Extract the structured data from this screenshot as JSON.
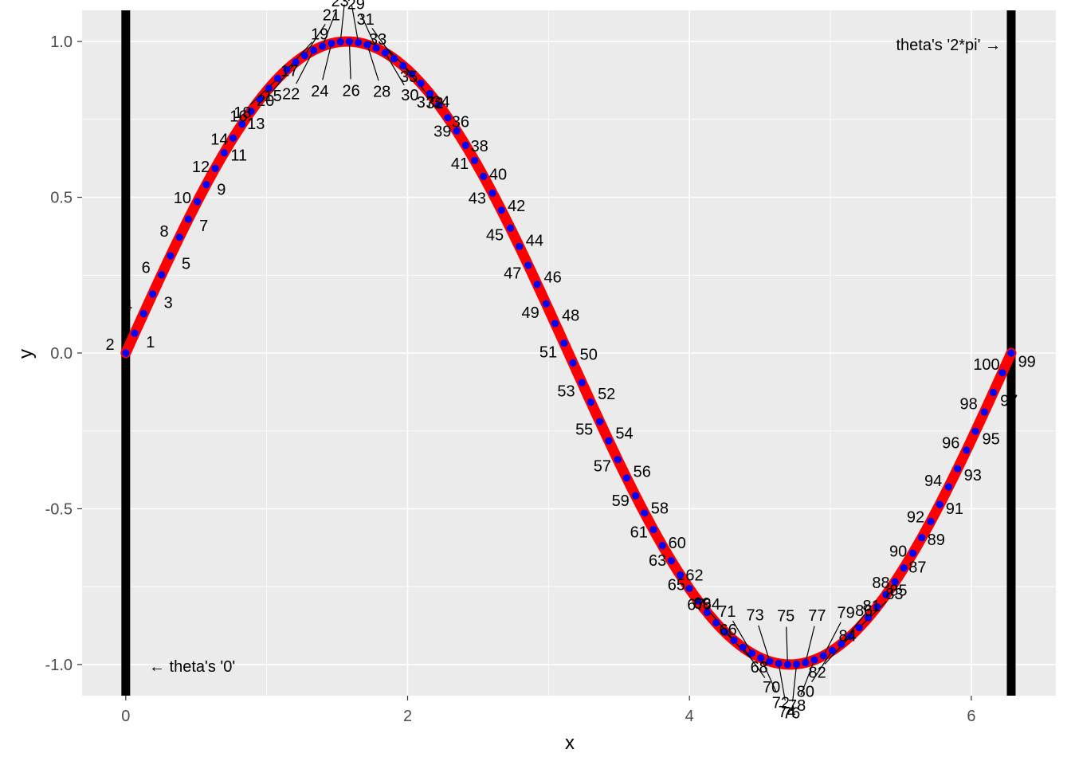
{
  "chart_data": {
    "type": "scatter",
    "title": "",
    "xlabel": "x",
    "ylabel": "y",
    "xlim": [
      -0.31,
      6.6
    ],
    "ylim": [
      -1.1,
      1.1
    ],
    "x_ticks": [
      0,
      2,
      4,
      6
    ],
    "x_tick_labels": [
      "0",
      "2",
      "4",
      "6"
    ],
    "y_ticks": [
      -1.0,
      -0.5,
      0.0,
      0.5,
      1.0
    ],
    "y_tick_labels": [
      "-1.0",
      "-0.5",
      "0.0",
      "0.5",
      "1.0"
    ],
    "grid": true,
    "curve": {
      "function": "sin",
      "x_start": 0,
      "x_end": 6.2832,
      "color": "#ff0000"
    },
    "points": {
      "count": 100,
      "x_start": 0,
      "x_end": 6.2832,
      "function": "sin",
      "color": "#0000ff"
    },
    "point_labels": [
      "1",
      "2",
      "3",
      "4",
      "5",
      "6",
      "7",
      "8",
      "9",
      "10",
      "11",
      "12",
      "13",
      "14",
      "15",
      "16",
      "17",
      "18",
      "19",
      "20",
      "21",
      "22",
      "23",
      "24",
      "25",
      "26",
      "27",
      "28",
      "29",
      "30",
      "31",
      "32",
      "33",
      "34",
      "35",
      "36",
      "37",
      "38",
      "39",
      "40",
      "41",
      "42",
      "43",
      "44",
      "45",
      "46",
      "47",
      "48",
      "49",
      "50",
      "51",
      "52",
      "53",
      "54",
      "55",
      "56",
      "57",
      "58",
      "59",
      "60",
      "61",
      "62",
      "63",
      "64",
      "65",
      "66",
      "67",
      "68",
      "69",
      "70",
      "71",
      "72",
      "73",
      "74",
      "75",
      "76",
      "77",
      "78",
      "79",
      "80",
      "81",
      "82",
      "83",
      "84",
      "85",
      "86",
      "87",
      "88",
      "89",
      "90",
      "91",
      "92",
      "93",
      "94",
      "95",
      "96",
      "97",
      "98",
      "99",
      "100"
    ],
    "vlines": [
      {
        "x": 0,
        "label": "← theta's '0'"
      },
      {
        "x": 6.2832,
        "label": "theta's '2*pi' →"
      }
    ]
  },
  "colors": {
    "panel": "#ebebeb",
    "grid": "#ffffff",
    "curve": "#ff0000",
    "points": "#0000ff",
    "vline": "#000000"
  }
}
